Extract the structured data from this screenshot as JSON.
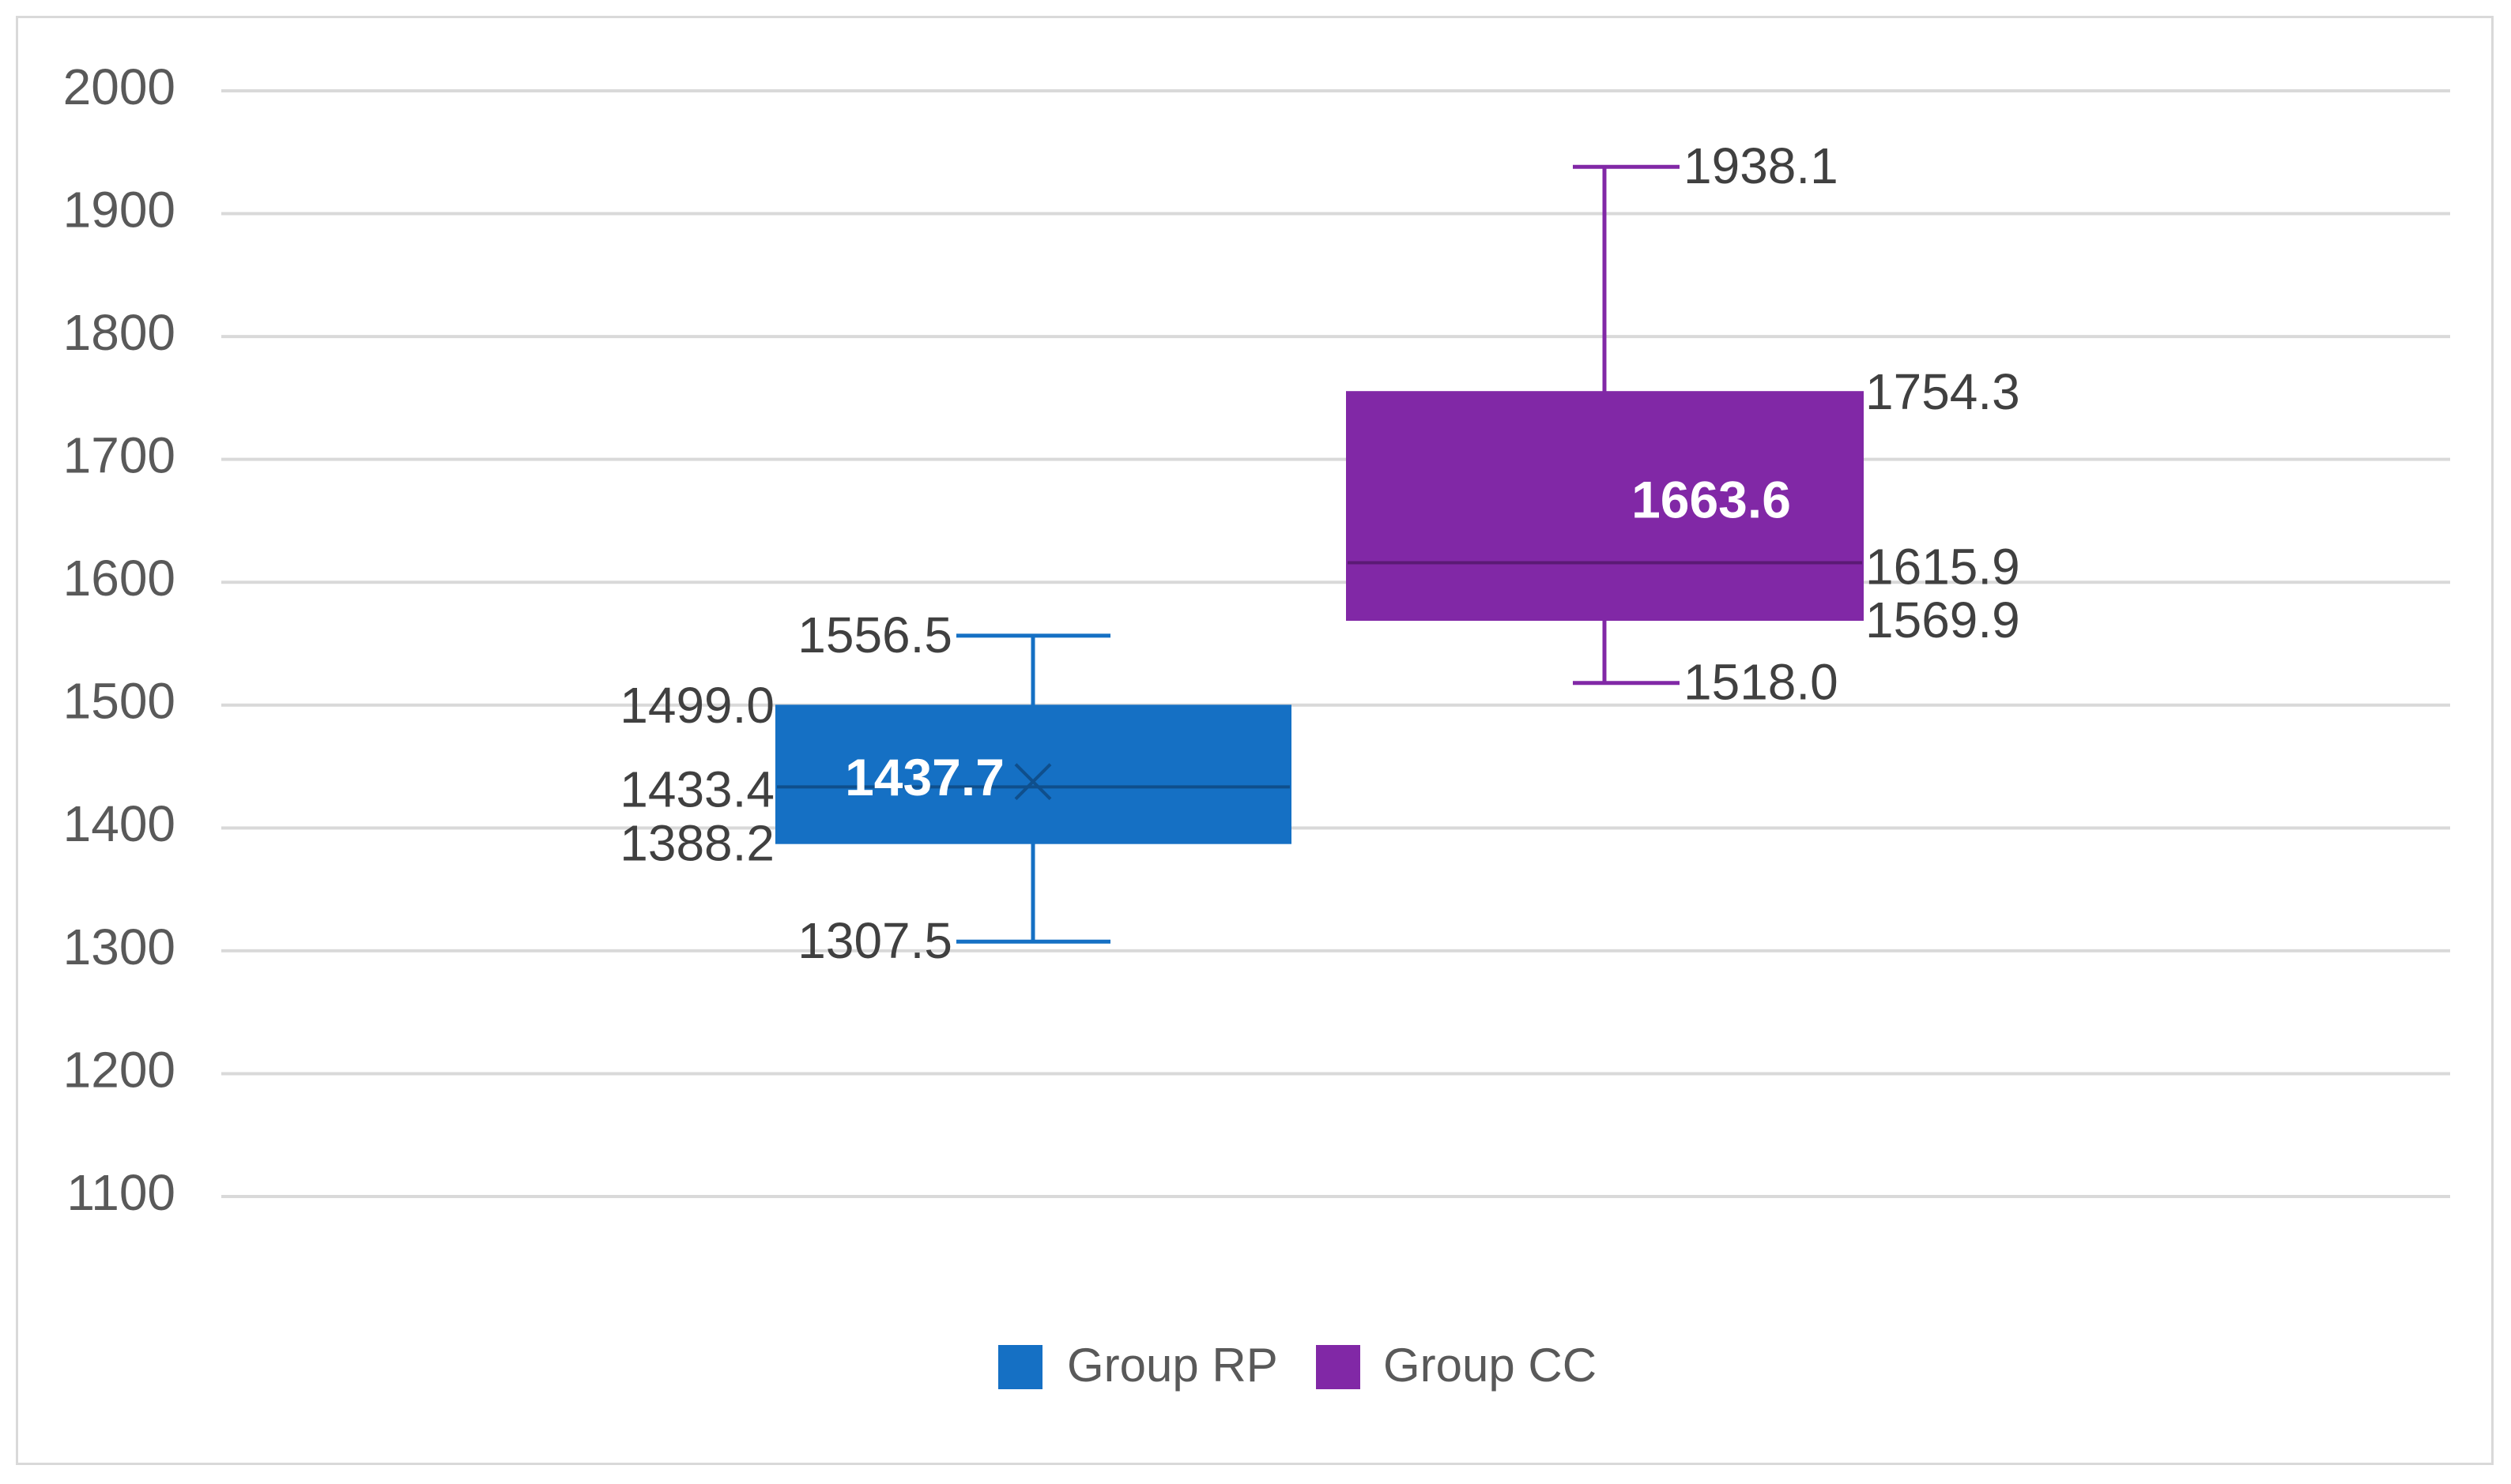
{
  "chart_data": {
    "type": "box",
    "title": "",
    "xlabel": "",
    "ylabel": "",
    "ylim": [
      1100,
      2000
    ],
    "yticks": [
      2000,
      1900,
      1800,
      1700,
      1600,
      1500,
      1400,
      1300,
      1200,
      1100
    ],
    "grid": true,
    "legend_position": "bottom",
    "series": [
      {
        "name": "Group RP",
        "color": "#1570C4",
        "min": 1307.5,
        "q1": 1388.2,
        "median": 1433.4,
        "q3": 1499.0,
        "max": 1556.5,
        "mean": 1437.7,
        "labels": {
          "min": "1307.5",
          "q1": "1388.2",
          "median": "1433.4",
          "q3": "1499.0",
          "max": "1556.5",
          "mean": "1437.7"
        }
      },
      {
        "name": "Group CC",
        "color": "#8128A6",
        "min": 1518.0,
        "q1": 1569.9,
        "median": 1615.9,
        "q3": 1754.3,
        "max": 1938.1,
        "mean": 1663.6,
        "labels": {
          "min": "1518.0",
          "q1": "1569.9",
          "median": "1615.9",
          "q3": "1754.3",
          "max": "1938.1",
          "mean": "1663.6"
        }
      }
    ]
  }
}
